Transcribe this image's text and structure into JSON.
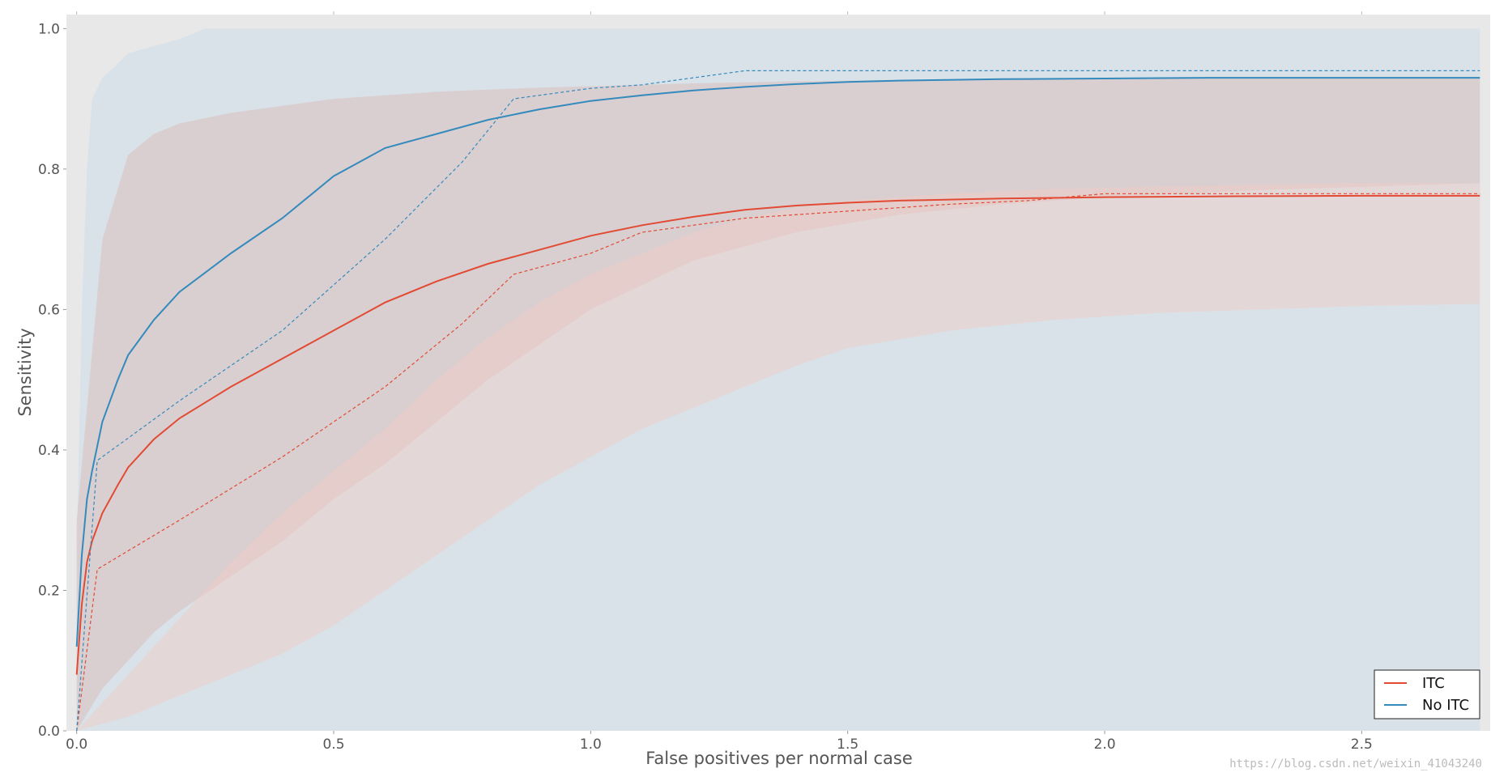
{
  "chart_data": {
    "type": "line",
    "xlabel": "False positives per normal case",
    "ylabel": "Sensitivity",
    "xlim": [
      -0.02,
      2.75
    ],
    "ylim": [
      0.0,
      1.02
    ],
    "x_ticks": [
      0.0,
      0.5,
      1.0,
      1.5,
      2.0,
      2.5
    ],
    "x_tick_labels": [
      "0.0",
      "0.5",
      "1.0",
      "1.5",
      "2.0",
      "2.5"
    ],
    "y_ticks": [
      0.0,
      0.2,
      0.4,
      0.6,
      0.8,
      1.0
    ],
    "y_tick_labels": [
      "0.0",
      "0.2",
      "0.4",
      "0.6",
      "0.8",
      "1.0"
    ],
    "grid": false,
    "legend_placement": "bottom-right",
    "colors": {
      "background": "#e8e8e8",
      "itc": "#e24a33",
      "no_itc": "#348abd",
      "itc_band": "#f2c9c3",
      "no_itc_band": "#bcd6e8"
    },
    "series": [
      {
        "name": "ITC",
        "key": "itc",
        "mean": {
          "x": [
            0.0,
            0.01,
            0.02,
            0.03,
            0.05,
            0.08,
            0.1,
            0.15,
            0.2,
            0.3,
            0.4,
            0.5,
            0.6,
            0.7,
            0.8,
            0.9,
            1.0,
            1.1,
            1.2,
            1.3,
            1.4,
            1.5,
            1.6,
            1.8,
            2.0,
            2.2,
            2.5,
            2.73
          ],
          "y": [
            0.08,
            0.18,
            0.24,
            0.27,
            0.31,
            0.35,
            0.375,
            0.415,
            0.445,
            0.49,
            0.53,
            0.57,
            0.61,
            0.64,
            0.665,
            0.685,
            0.705,
            0.72,
            0.732,
            0.742,
            0.748,
            0.752,
            0.755,
            0.758,
            0.76,
            0.761,
            0.762,
            0.762
          ]
        },
        "dashed": {
          "x": [
            0.0,
            0.04,
            0.2,
            0.4,
            0.6,
            0.75,
            0.85,
            1.0,
            1.1,
            1.3,
            1.5,
            1.7,
            1.85,
            2.0,
            2.73
          ],
          "y": [
            0.0,
            0.23,
            0.3,
            0.39,
            0.49,
            0.58,
            0.65,
            0.68,
            0.71,
            0.73,
            0.74,
            0.75,
            0.755,
            0.765,
            0.765
          ]
        },
        "band": {
          "x": [
            0.0,
            0.05,
            0.1,
            0.2,
            0.3,
            0.4,
            0.5,
            0.6,
            0.7,
            0.8,
            0.9,
            1.0,
            1.1,
            1.2,
            1.3,
            1.4,
            1.5,
            1.7,
            1.9,
            2.1,
            2.3,
            2.5,
            2.73
          ],
          "upper": [
            0.0,
            0.04,
            0.08,
            0.16,
            0.24,
            0.31,
            0.37,
            0.43,
            0.5,
            0.56,
            0.61,
            0.65,
            0.68,
            0.71,
            0.73,
            0.745,
            0.755,
            0.765,
            0.772,
            0.775,
            0.778,
            0.78,
            0.78
          ],
          "lower": [
            0.0,
            0.01,
            0.02,
            0.05,
            0.08,
            0.11,
            0.15,
            0.2,
            0.25,
            0.3,
            0.35,
            0.39,
            0.43,
            0.46,
            0.49,
            0.52,
            0.545,
            0.57,
            0.585,
            0.595,
            0.6,
            0.605,
            0.608
          ]
        }
      },
      {
        "name": "No ITC",
        "key": "no_itc",
        "mean": {
          "x": [
            0.0,
            0.01,
            0.02,
            0.03,
            0.05,
            0.08,
            0.1,
            0.15,
            0.2,
            0.3,
            0.4,
            0.5,
            0.6,
            0.7,
            0.8,
            0.9,
            1.0,
            1.1,
            1.2,
            1.3,
            1.4,
            1.5,
            1.6,
            1.8,
            2.0,
            2.2,
            2.5,
            2.73
          ],
          "y": [
            0.12,
            0.25,
            0.33,
            0.37,
            0.44,
            0.5,
            0.535,
            0.585,
            0.625,
            0.68,
            0.73,
            0.79,
            0.83,
            0.85,
            0.87,
            0.885,
            0.897,
            0.905,
            0.912,
            0.917,
            0.921,
            0.924,
            0.926,
            0.928,
            0.929,
            0.93,
            0.93,
            0.93
          ]
        },
        "dashed": {
          "x": [
            0.0,
            0.04,
            0.2,
            0.4,
            0.6,
            0.75,
            0.85,
            1.0,
            1.1,
            1.3,
            1.5,
            1.7,
            2.0,
            2.73
          ],
          "y": [
            0.0,
            0.385,
            0.47,
            0.57,
            0.7,
            0.81,
            0.9,
            0.915,
            0.92,
            0.94,
            0.94,
            0.94,
            0.94,
            0.94
          ]
        },
        "band": {
          "x": [
            0.0,
            0.05,
            0.1,
            0.15,
            0.2,
            0.3,
            0.4,
            0.5,
            0.6,
            0.7,
            0.8,
            0.9,
            1.0,
            1.2,
            1.4,
            1.6,
            1.8,
            2.0,
            2.3,
            2.73
          ],
          "upper": [
            0.3,
            0.7,
            0.82,
            0.85,
            0.865,
            0.88,
            0.89,
            0.9,
            0.905,
            0.91,
            0.913,
            0.916,
            0.918,
            0.922,
            0.925,
            0.927,
            0.928,
            0.929,
            0.93,
            0.93
          ],
          "lower": [
            0.0,
            0.06,
            0.1,
            0.14,
            0.17,
            0.22,
            0.27,
            0.33,
            0.38,
            0.44,
            0.5,
            0.55,
            0.6,
            0.67,
            0.71,
            0.735,
            0.75,
            0.76,
            0.77,
            0.78
          ]
        }
      }
    ],
    "outer_envelope": {
      "x": [
        0.0,
        0.01,
        0.02,
        0.03,
        0.05,
        0.08,
        0.1,
        0.15,
        0.2,
        0.25,
        0.3,
        2.73
      ],
      "upper": [
        0.25,
        0.6,
        0.8,
        0.9,
        0.93,
        0.95,
        0.965,
        0.975,
        0.985,
        1.0,
        1.0,
        1.0
      ]
    }
  },
  "legend": {
    "items": [
      {
        "label": "ITC",
        "key": "itc"
      },
      {
        "label": "No ITC",
        "key": "no_itc"
      }
    ]
  },
  "watermark": "https://blog.csdn.net/weixin_41043240"
}
